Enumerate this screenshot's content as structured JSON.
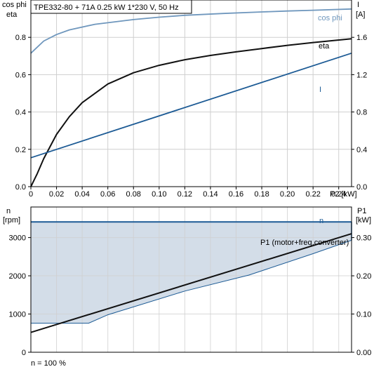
{
  "chart_data": [
    {
      "type": "line",
      "title": "TPE332-80 + 71A   0.25 kW   1*230 V, 50 Hz",
      "xlabel": "P2 [kW]",
      "xlim": [
        0,
        0.25
      ],
      "x_ticks": [
        "0",
        "0.02",
        "0.04",
        "0.06",
        "0.08",
        "0.10",
        "0.12",
        "0.14",
        "0.16",
        "0.18",
        "0.20",
        "0.22",
        "0.24"
      ],
      "left_axis": {
        "label_line1": "cos phi",
        "label_line2": "eta",
        "ylim": [
          0,
          1.0
        ],
        "ticks": [
          "0.0",
          "0.2",
          "0.4",
          "0.6",
          "0.8"
        ]
      },
      "right_axis": {
        "label_line1": "I",
        "label_line2": "[A]",
        "ylim": [
          0,
          2.0
        ],
        "ticks": [
          "0.0",
          "0.4",
          "0.8",
          "1.2",
          "1.6"
        ]
      },
      "grid": true,
      "series": [
        {
          "name": "cos phi",
          "axis": "left",
          "color": "#6f97bd",
          "x": [
            0,
            0.01,
            0.02,
            0.03,
            0.05,
            0.08,
            0.1,
            0.12,
            0.15,
            0.18,
            0.2,
            0.22,
            0.25
          ],
          "y": [
            0.715,
            0.78,
            0.815,
            0.84,
            0.87,
            0.895,
            0.908,
            0.918,
            0.928,
            0.936,
            0.941,
            0.945,
            0.952
          ]
        },
        {
          "name": "eta",
          "axis": "left",
          "color": "#111111",
          "x": [
            0,
            0.005,
            0.01,
            0.02,
            0.03,
            0.04,
            0.06,
            0.08,
            0.1,
            0.12,
            0.14,
            0.16,
            0.18,
            0.2,
            0.22,
            0.25
          ],
          "y": [
            0.0,
            0.07,
            0.15,
            0.28,
            0.375,
            0.45,
            0.55,
            0.61,
            0.65,
            0.68,
            0.703,
            0.722,
            0.74,
            0.757,
            0.772,
            0.792
          ]
        },
        {
          "name": "I",
          "axis": "right",
          "color": "#1d5b95",
          "x": [
            0,
            0.25
          ],
          "y": [
            0.31,
            1.43
          ]
        }
      ]
    },
    {
      "type": "area",
      "xlim": [
        0,
        0.25
      ],
      "left_axis": {
        "label_line1": "n",
        "label_line2": "[rpm]",
        "ylim": [
          0,
          3800
        ],
        "ticks": [
          "0",
          "1000",
          "2000",
          "3000"
        ]
      },
      "right_axis": {
        "label_line1": "P1",
        "label_line2": "[kW]",
        "ylim": [
          0,
          0.38
        ],
        "ticks": [
          "0.00",
          "0.10",
          "0.20",
          "0.30"
        ]
      },
      "grid": true,
      "footer": "n = 100 %",
      "operating_range": {
        "fill_color": "#d3dde8",
        "edge_color": "#1d5b95",
        "max_speed": {
          "name": "n",
          "x": [
            0,
            0.25
          ],
          "y": [
            3410,
            3410
          ]
        },
        "lower_limit": {
          "x": [
            0,
            0.045,
            0.06,
            0.12,
            0.17,
            0.22,
            0.25
          ],
          "y": [
            760,
            760,
            980,
            1600,
            2020,
            2580,
            2930
          ]
        }
      },
      "series": [
        {
          "name": "P1 (motor+freq.converter)",
          "axis": "right",
          "color": "#111111",
          "x": [
            0,
            0.25
          ],
          "y": [
            0.052,
            0.31
          ]
        }
      ]
    }
  ]
}
